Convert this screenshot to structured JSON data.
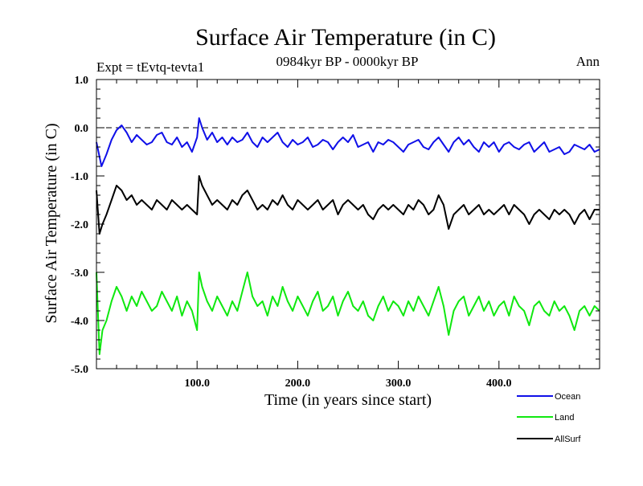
{
  "chart_data": {
    "type": "line",
    "title": "Surface Air Temperature (in C)",
    "subtitle": "0984kyr BP - 0000kyr BP",
    "experiment_label": "Expt = tEvtq-tevta1",
    "period_label": "Ann",
    "xlabel": "Time (in years since start)",
    "ylabel": "Surface Air Temperature (in C)",
    "xlim": [
      0,
      500
    ],
    "ylim": [
      -5.0,
      1.0
    ],
    "x_ticks": [
      100,
      200,
      300,
      400
    ],
    "x_tick_labels": [
      "100.0",
      "200.0",
      "300.0",
      "400.0"
    ],
    "y_ticks": [
      1.0,
      0.0,
      -1.0,
      -2.0,
      -3.0,
      -4.0,
      -5.0
    ],
    "y_tick_labels": [
      "1.0",
      "0.0",
      "-1.0",
      "-2.0",
      "-3.0",
      "-4.0",
      "-5.0"
    ],
    "reference_line": 0.0,
    "legend_position": "bottom-right",
    "series": [
      {
        "name": "Ocean",
        "color": "#1010e8",
        "x": [
          0,
          5,
          10,
          15,
          20,
          25,
          30,
          35,
          40,
          45,
          50,
          55,
          60,
          65,
          70,
          75,
          80,
          85,
          90,
          95,
          100,
          102,
          105,
          110,
          115,
          120,
          125,
          130,
          135,
          140,
          145,
          150,
          155,
          160,
          165,
          170,
          175,
          180,
          185,
          190,
          195,
          200,
          205,
          210,
          215,
          220,
          225,
          230,
          235,
          240,
          245,
          250,
          255,
          260,
          265,
          270,
          275,
          280,
          285,
          290,
          295,
          300,
          305,
          310,
          315,
          320,
          325,
          330,
          335,
          340,
          345,
          350,
          355,
          360,
          365,
          370,
          375,
          380,
          385,
          390,
          395,
          400,
          405,
          410,
          415,
          420,
          425,
          430,
          435,
          440,
          445,
          450,
          455,
          460,
          465,
          470,
          475,
          480,
          485,
          490,
          495,
          500
        ],
        "values": [
          -0.3,
          -0.8,
          -0.55,
          -0.25,
          -0.05,
          0.05,
          -0.1,
          -0.3,
          -0.15,
          -0.25,
          -0.35,
          -0.3,
          -0.15,
          -0.1,
          -0.3,
          -0.35,
          -0.2,
          -0.4,
          -0.3,
          -0.5,
          -0.2,
          0.2,
          0.0,
          -0.25,
          -0.1,
          -0.3,
          -0.2,
          -0.35,
          -0.2,
          -0.3,
          -0.25,
          -0.1,
          -0.3,
          -0.4,
          -0.2,
          -0.3,
          -0.2,
          -0.1,
          -0.3,
          -0.4,
          -0.25,
          -0.35,
          -0.3,
          -0.2,
          -0.4,
          -0.35,
          -0.25,
          -0.3,
          -0.45,
          -0.3,
          -0.2,
          -0.3,
          -0.15,
          -0.4,
          -0.35,
          -0.3,
          -0.5,
          -0.3,
          -0.35,
          -0.25,
          -0.3,
          -0.4,
          -0.5,
          -0.35,
          -0.3,
          -0.25,
          -0.4,
          -0.45,
          -0.3,
          -0.2,
          -0.35,
          -0.5,
          -0.3,
          -0.2,
          -0.35,
          -0.25,
          -0.4,
          -0.5,
          -0.3,
          -0.4,
          -0.3,
          -0.5,
          -0.35,
          -0.3,
          -0.4,
          -0.45,
          -0.35,
          -0.3,
          -0.5,
          -0.4,
          -0.3,
          -0.5,
          -0.45,
          -0.4,
          -0.55,
          -0.5,
          -0.35,
          -0.4,
          -0.45,
          -0.35,
          -0.5,
          -0.45
        ]
      },
      {
        "name": "Land",
        "color": "#10e810",
        "x": [
          0,
          3,
          6,
          10,
          15,
          20,
          25,
          30,
          35,
          40,
          45,
          50,
          55,
          60,
          65,
          70,
          75,
          80,
          85,
          90,
          95,
          100,
          102,
          105,
          110,
          115,
          120,
          125,
          130,
          135,
          140,
          145,
          150,
          155,
          160,
          165,
          170,
          175,
          180,
          185,
          190,
          195,
          200,
          205,
          210,
          215,
          220,
          225,
          230,
          235,
          240,
          245,
          250,
          255,
          260,
          265,
          270,
          275,
          280,
          285,
          290,
          295,
          300,
          305,
          310,
          315,
          320,
          325,
          330,
          335,
          340,
          345,
          350,
          355,
          360,
          365,
          370,
          375,
          380,
          385,
          390,
          395,
          400,
          405,
          410,
          415,
          420,
          425,
          430,
          435,
          440,
          445,
          450,
          455,
          460,
          465,
          470,
          475,
          480,
          485,
          490,
          495,
          500
        ],
        "values": [
          -3.0,
          -4.7,
          -4.2,
          -4.0,
          -3.6,
          -3.3,
          -3.5,
          -3.8,
          -3.5,
          -3.7,
          -3.4,
          -3.6,
          -3.8,
          -3.7,
          -3.4,
          -3.6,
          -3.8,
          -3.5,
          -3.9,
          -3.6,
          -3.8,
          -4.2,
          -3.0,
          -3.3,
          -3.6,
          -3.8,
          -3.5,
          -3.7,
          -3.9,
          -3.6,
          -3.8,
          -3.4,
          -3.0,
          -3.5,
          -3.7,
          -3.6,
          -3.9,
          -3.5,
          -3.7,
          -3.3,
          -3.6,
          -3.8,
          -3.5,
          -3.7,
          -3.9,
          -3.6,
          -3.4,
          -3.8,
          -3.7,
          -3.5,
          -3.9,
          -3.6,
          -3.4,
          -3.7,
          -3.8,
          -3.6,
          -3.9,
          -4.0,
          -3.7,
          -3.5,
          -3.8,
          -3.6,
          -3.7,
          -3.9,
          -3.6,
          -3.8,
          -3.5,
          -3.7,
          -3.9,
          -3.6,
          -3.3,
          -3.7,
          -4.3,
          -3.8,
          -3.6,
          -3.5,
          -3.9,
          -3.7,
          -3.5,
          -3.8,
          -3.6,
          -3.9,
          -3.7,
          -3.6,
          -3.9,
          -3.5,
          -3.7,
          -3.8,
          -4.1,
          -3.7,
          -3.6,
          -3.8,
          -3.9,
          -3.6,
          -3.8,
          -3.7,
          -3.9,
          -4.2,
          -3.8,
          -3.7,
          -3.9,
          -3.7,
          -3.8
        ]
      },
      {
        "name": "AllSurf",
        "color": "#000000",
        "x": [
          0,
          3,
          6,
          10,
          15,
          20,
          25,
          30,
          35,
          40,
          45,
          50,
          55,
          60,
          65,
          70,
          75,
          80,
          85,
          90,
          95,
          100,
          102,
          105,
          110,
          115,
          120,
          125,
          130,
          135,
          140,
          145,
          150,
          155,
          160,
          165,
          170,
          175,
          180,
          185,
          190,
          195,
          200,
          205,
          210,
          215,
          220,
          225,
          230,
          235,
          240,
          245,
          250,
          255,
          260,
          265,
          270,
          275,
          280,
          285,
          290,
          295,
          300,
          305,
          310,
          315,
          320,
          325,
          330,
          335,
          340,
          345,
          350,
          355,
          360,
          365,
          370,
          375,
          380,
          385,
          390,
          395,
          400,
          405,
          410,
          415,
          420,
          425,
          430,
          435,
          440,
          445,
          450,
          455,
          460,
          465,
          470,
          475,
          480,
          485,
          490,
          495,
          500
        ],
        "values": [
          -1.3,
          -2.2,
          -2.0,
          -1.8,
          -1.5,
          -1.2,
          -1.3,
          -1.5,
          -1.4,
          -1.6,
          -1.5,
          -1.6,
          -1.7,
          -1.5,
          -1.6,
          -1.7,
          -1.5,
          -1.6,
          -1.7,
          -1.6,
          -1.7,
          -1.8,
          -1.0,
          -1.2,
          -1.4,
          -1.6,
          -1.5,
          -1.6,
          -1.7,
          -1.5,
          -1.6,
          -1.4,
          -1.3,
          -1.5,
          -1.7,
          -1.6,
          -1.7,
          -1.5,
          -1.6,
          -1.4,
          -1.6,
          -1.7,
          -1.5,
          -1.6,
          -1.7,
          -1.6,
          -1.5,
          -1.7,
          -1.6,
          -1.5,
          -1.8,
          -1.6,
          -1.5,
          -1.6,
          -1.7,
          -1.6,
          -1.8,
          -1.9,
          -1.7,
          -1.6,
          -1.7,
          -1.6,
          -1.7,
          -1.8,
          -1.6,
          -1.7,
          -1.5,
          -1.6,
          -1.8,
          -1.7,
          -1.4,
          -1.6,
          -2.1,
          -1.8,
          -1.7,
          -1.6,
          -1.8,
          -1.7,
          -1.6,
          -1.8,
          -1.7,
          -1.8,
          -1.7,
          -1.6,
          -1.8,
          -1.6,
          -1.7,
          -1.8,
          -2.0,
          -1.8,
          -1.7,
          -1.8,
          -1.9,
          -1.7,
          -1.8,
          -1.7,
          -1.8,
          -2.0,
          -1.8,
          -1.7,
          -1.9,
          -1.7,
          -1.7
        ]
      }
    ]
  }
}
